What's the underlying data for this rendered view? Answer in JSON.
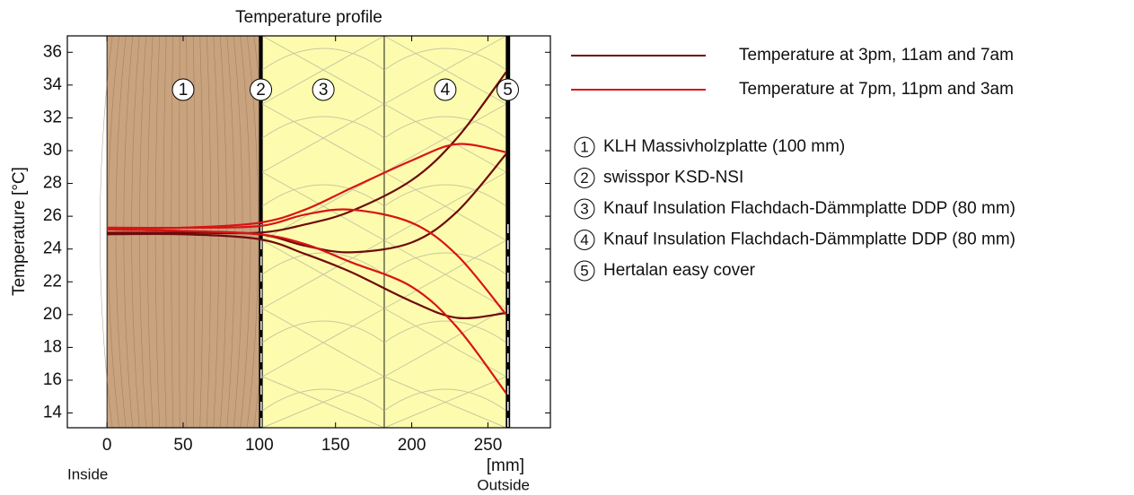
{
  "chart_data": {
    "type": "line",
    "title": "Temperature profile",
    "ylabel": "Temperature  [°C]",
    "xlabel": "[mm]",
    "inside_label": "Inside",
    "outside_label": "Outside",
    "xlim": [
      -26,
      291
    ],
    "ylim": [
      13.1,
      37.0
    ],
    "xticks": [
      0,
      50,
      100,
      150,
      200,
      250
    ],
    "yticks": [
      14,
      16,
      18,
      20,
      22,
      24,
      26,
      28,
      30,
      32,
      34,
      36
    ],
    "grid": false,
    "x": [
      0,
      50,
      100,
      130,
      160,
      200,
      230,
      262
    ],
    "series": [
      {
        "name": "Temperature at 3pm, 11am and 7am",
        "color": "#6e0b0b",
        "lines": [
          [
            25.0,
            25.0,
            25.0,
            25.5,
            26.3,
            28.2,
            30.8,
            34.8
          ],
          [
            25.2,
            25.1,
            24.9,
            24.2,
            23.8,
            24.4,
            26.3,
            29.8
          ],
          [
            24.9,
            24.9,
            24.6,
            23.7,
            22.6,
            20.8,
            19.8,
            20.1
          ]
        ]
      },
      {
        "name": "Temperature at 7pm, 11pm and 3am",
        "color": "#d81414",
        "lines": [
          [
            25.3,
            25.3,
            25.6,
            26.4,
            27.7,
            29.4,
            30.4,
            29.9
          ],
          [
            25.3,
            25.3,
            25.4,
            26.1,
            26.4,
            25.6,
            23.6,
            20.0
          ],
          [
            25.2,
            25.1,
            24.9,
            24.3,
            23.2,
            21.7,
            19.2,
            15.2
          ]
        ]
      }
    ],
    "layers": [
      {
        "label": "1",
        "name": "KLH Massivholzplatte (100 mm)",
        "start": 0,
        "end": 100,
        "color": "#c9a27e"
      },
      {
        "label": "2",
        "name": "swisspor KSD-NSI",
        "start": 100,
        "end": 102,
        "color": "#000000"
      },
      {
        "label": "3",
        "name": "Knauf Insulation Flachdach-Dämmplatte DDP (80 mm)",
        "start": 102,
        "end": 182,
        "color": "#fdfcae"
      },
      {
        "label": "4",
        "name": "Knauf Insulation Flachdach-Dämmplatte DDP (80 mm)",
        "start": 182,
        "end": 262,
        "color": "#fdfcae"
      },
      {
        "label": "5",
        "name": "Hertalan easy cover",
        "start": 262,
        "end": 264,
        "color": "#000000"
      }
    ]
  }
}
